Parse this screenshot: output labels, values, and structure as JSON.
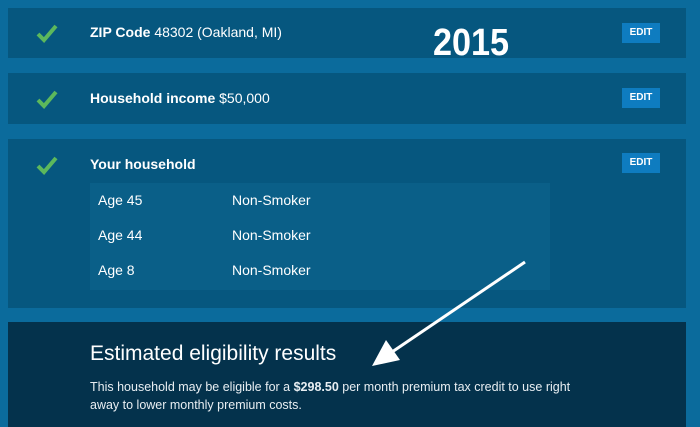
{
  "year_label": "2015",
  "zip": {
    "label": "ZIP Code",
    "value": "48302 (Oakland, MI)",
    "edit": "EDIT"
  },
  "income": {
    "label": "Household income",
    "value": "$50,000",
    "edit": "EDIT"
  },
  "household": {
    "label": "Your household",
    "edit": "EDIT",
    "members": [
      {
        "age": "Age 45",
        "status": "Non-Smoker"
      },
      {
        "age": "Age 44",
        "status": "Non-Smoker"
      },
      {
        "age": "Age 8",
        "status": "Non-Smoker"
      }
    ]
  },
  "results": {
    "title": "Estimated eligibility results",
    "text_before": "This household may be eligible for a ",
    "amount": "$298.50",
    "text_after": " per month premium tax credit to use right away to lower monthly premium costs."
  },
  "colors": {
    "check": "#5cb85c",
    "edit": "#0e7cc0"
  }
}
